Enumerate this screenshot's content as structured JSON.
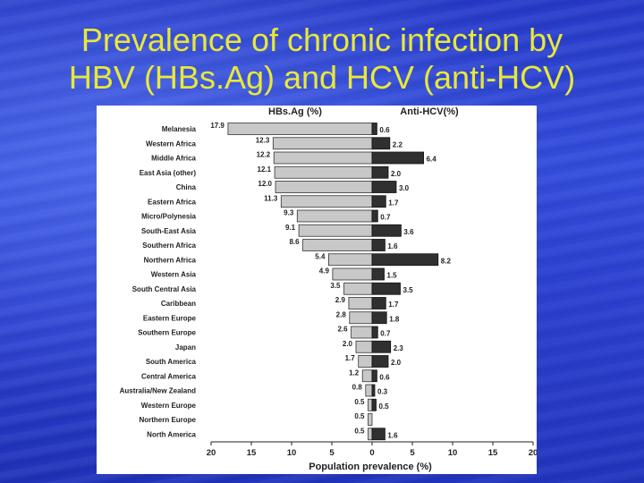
{
  "slide": {
    "title_line1": "Prevalence of chronic infection by",
    "title_line2": "HBV (HBs.Ag) and HCV (anti-HCV)"
  },
  "colors": {
    "title": "#e8e83a",
    "hbsag_bar": "#c8c8c8",
    "hcv_bar": "#303030",
    "background": "#2f48d8"
  },
  "chart_data": {
    "type": "bar",
    "orientation": "horizontal-back-to-back",
    "left_header": "HBs.Ag (%)",
    "right_header": "Anti-HCV(%)",
    "xlabel": "Population prevalence (%)",
    "xlim": [
      -20,
      20
    ],
    "xticks": [
      "20",
      "15",
      "10",
      "5",
      "0",
      "5",
      "10",
      "15",
      "20"
    ],
    "categories": [
      "Melanesia",
      "Western Africa",
      "Middle Africa",
      "East Asia (other)",
      "China",
      "Eastern Africa",
      "Micro/Polynesia",
      "South-East Asia",
      "Southern Africa",
      "Northern Africa",
      "Western Asia",
      "South Central Asia",
      "Caribbean",
      "Eastern Europe",
      "Southern Europe",
      "Japan",
      "South America",
      "Central America",
      "Australia/New Zealand",
      "Western Europe",
      "Northern Europe",
      "North America"
    ],
    "series": [
      {
        "name": "HBs.Ag (%)",
        "values": [
          17.9,
          12.3,
          12.2,
          12.1,
          12.0,
          11.3,
          9.3,
          9.1,
          8.6,
          5.4,
          4.9,
          3.5,
          2.9,
          2.8,
          2.6,
          2.0,
          1.7,
          1.2,
          0.8,
          0.5,
          0.5,
          0.5
        ],
        "labels": [
          "17.9",
          "12.3",
          "12.2",
          "12.1",
          "12.0",
          "11.3",
          "9.3",
          "9.1",
          "8.6",
          "5.4",
          "4.9",
          "3.5",
          "2.9",
          "2.8",
          "2.6",
          "2.0",
          "1.7",
          "1.2",
          "0.8",
          "0.5",
          "0.5",
          "0.5"
        ]
      },
      {
        "name": "Anti-HCV(%)",
        "values": [
          0.6,
          2.2,
          6.4,
          2.0,
          3.0,
          1.7,
          0.7,
          3.6,
          1.6,
          8.2,
          1.5,
          3.5,
          1.7,
          1.8,
          0.7,
          2.3,
          2.0,
          0.6,
          0.3,
          0.5,
          null,
          1.6
        ],
        "labels": [
          "0.6",
          "2.2",
          "6.4",
          "2.0",
          "3.0",
          "1.7",
          "0.7",
          "3.6",
          "1.6",
          "8.2",
          "1.5",
          "3.5",
          "1.7",
          "1.8",
          "0.7",
          "2.3",
          "2.0",
          "0.6",
          "0.3",
          "0.5",
          "",
          "1.6"
        ]
      }
    ],
    "grid": false,
    "legend": "none"
  }
}
